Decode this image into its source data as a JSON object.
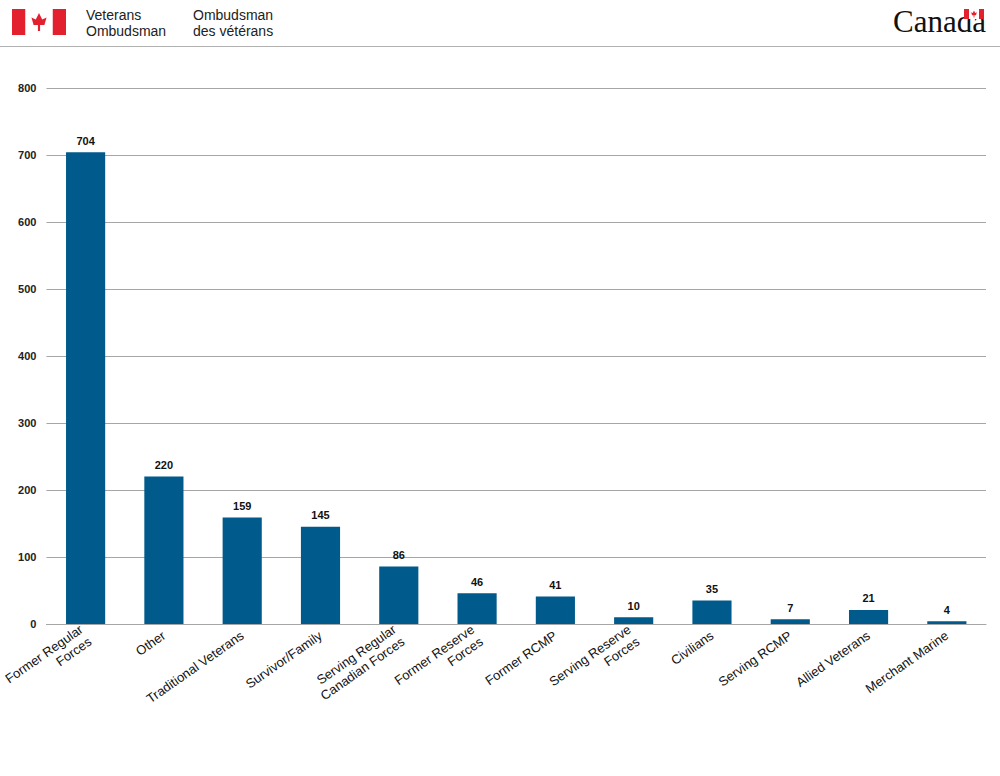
{
  "header": {
    "signature_en": [
      "Veterans",
      "Ombudsman"
    ],
    "signature_fr": [
      "Ombudsman",
      "des vétérans"
    ],
    "wordmark": "Canada"
  },
  "chart_data": {
    "type": "bar",
    "categories": [
      "Former Regular\nForces",
      "Other",
      "Traditional Veterans",
      "Survivor/Family",
      "Serving Regular\nCanadian Forces",
      "Former Reserve\nForces",
      "Former RCMP",
      "Serving Reserve\nForces",
      "Civilians",
      "Serving RCMP",
      "Allied Veterans",
      "Merchant Marine"
    ],
    "values": [
      704,
      220,
      159,
      145,
      86,
      46,
      41,
      10,
      35,
      7,
      21,
      4
    ],
    "color": "#005a8c",
    "ylim": [
      0,
      800
    ],
    "yticks": [
      0,
      100,
      200,
      300,
      400,
      500,
      600,
      700,
      800
    ],
    "grid": true,
    "data_labels": true
  }
}
